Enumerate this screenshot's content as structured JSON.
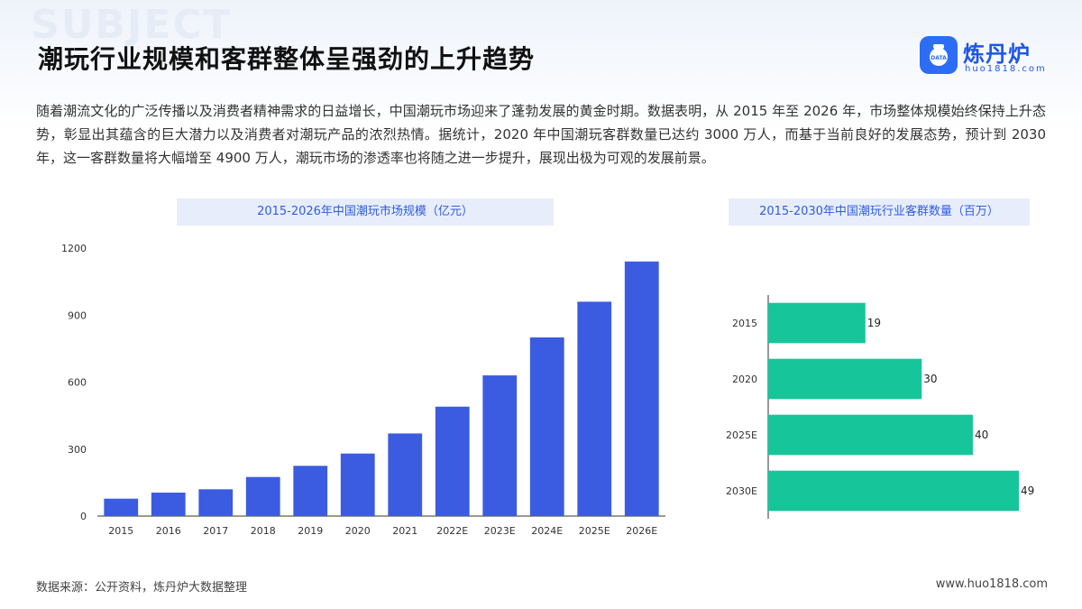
{
  "page": {
    "background_word": "SUBJECT",
    "title": "潮玩行业规模和客群整体呈强劲的上升趋势",
    "intro": "随着潮流文化的广泛传播以及消费者精神需求的日益增长，中国潮玩市场迎来了蓬勃发展的黄金时期。数据表明，从 2015 年至 2026 年，市场整体规模始终保持上升态势，彰显出其蕴含的巨大潜力以及消费者对潮玩产品的浓烈热情。据统计，2020 年中国潮玩客群数量已达约 3000 万人，而基于当前良好的发展态势，预计到 2030 年，这一客群数量将大幅增至 4900 万人，潮玩市场的渗透率也将随之进一步提升，展现出极为可观的发展前景。",
    "source": "数据来源：公开资料，炼丹炉大数据整理",
    "website": "www.huo1818.com"
  },
  "logo": {
    "name": "炼丹炉",
    "sub": "huo1818.com",
    "badge_text": "DATA",
    "icon": "cauldron-icon",
    "color": "#2d6df6"
  },
  "chart_data": [
    {
      "type": "bar",
      "orientation": "vertical",
      "title": "2015-2026年中国潮玩市场规模（亿元）",
      "categories": [
        "2015",
        "2016",
        "2017",
        "2018",
        "2019",
        "2020",
        "2021",
        "2022E",
        "2023E",
        "2024E",
        "2025E",
        "2026E"
      ],
      "values": [
        78,
        105,
        120,
        175,
        225,
        280,
        370,
        490,
        630,
        800,
        960,
        1140
      ],
      "yticks": [
        "0",
        "300",
        "600",
        "900",
        "1200"
      ],
      "ylim": [
        0,
        1200
      ],
      "grid": false,
      "color": "#3b5ce0"
    },
    {
      "type": "bar",
      "orientation": "horizontal",
      "title": "2015-2030年中国潮玩行业客群数量（百万）",
      "categories": [
        "2015",
        "2020",
        "2025E",
        "2030E"
      ],
      "values": [
        19,
        30,
        40,
        49
      ],
      "data_labels": [
        "19",
        "30",
        "40",
        "49"
      ],
      "xlim": [
        0,
        49
      ],
      "grid": false,
      "color": "#17c59a"
    }
  ]
}
